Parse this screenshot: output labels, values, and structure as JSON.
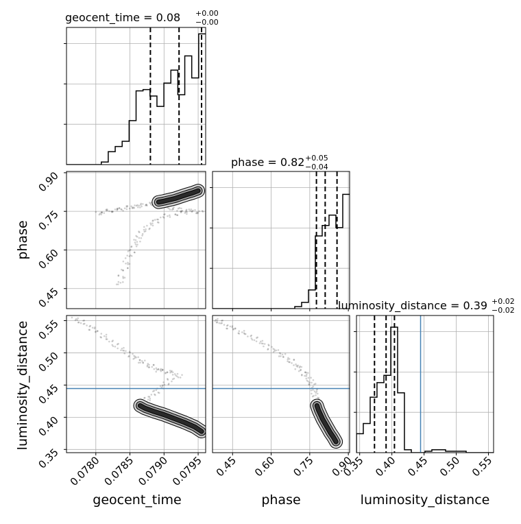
{
  "chart_data": {
    "type": "corner",
    "parameters": [
      "geocent_time",
      "phase",
      "luminosity_distance"
    ],
    "axis_labels": {
      "x": [
        "geocent_time",
        "phase",
        "luminosity_distance"
      ],
      "y": [
        "phase",
        "luminosity_distance"
      ]
    },
    "titles": [
      {
        "name": "geocent_time",
        "text": "geocent_time = 0.08",
        "sup": "+0.00",
        "sub": "−0.00"
      },
      {
        "name": "phase",
        "text": "phase = 0.82",
        "sup": "+0.05",
        "sub": "−0.04"
      },
      {
        "name": "luminosity_distance",
        "text": "luminosity_distance = 0.39",
        "sup": "+0.02",
        "sub": "−0.02"
      }
    ],
    "ranges": {
      "geocent_time": [
        0.07757,
        0.07961
      ],
      "phase": [
        0.372,
        0.905
      ],
      "luminosity_distance": [
        0.345,
        0.558
      ]
    },
    "ticks": {
      "geocent_time": [
        0.078,
        0.0785,
        0.079,
        0.0795
      ],
      "phase": [
        0.45,
        0.6,
        0.75,
        0.9
      ],
      "luminosity_distance": [
        0.35,
        0.4,
        0.45,
        0.5,
        0.55
      ]
    },
    "tick_labels": {
      "geocent_time": [
        "0.0780",
        "0.0785",
        "0.0790",
        "0.0795"
      ],
      "phase": [
        "0.45",
        "0.60",
        "0.75",
        "0.90"
      ],
      "luminosity_distance": [
        "0.35",
        "0.40",
        "0.45",
        "0.50",
        "0.55"
      ]
    },
    "histograms": {
      "geocent_time": {
        "edges": [
          0.07757,
          0.077672,
          0.077774,
          0.077876,
          0.077978,
          0.07808,
          0.078182,
          0.078284,
          0.078386,
          0.078488,
          0.07859,
          0.078692,
          0.078794,
          0.078896,
          0.078998,
          0.0791,
          0.079202,
          0.079304,
          0.079406,
          0.079508,
          0.07961
        ],
        "counts": [
          0,
          0,
          0,
          0,
          0,
          2,
          10,
          14,
          18,
          34,
          57,
          58,
          53,
          45,
          63,
          73,
          54,
          84,
          67,
          101
        ],
        "ymax": 106
      },
      "phase": {
        "edges": [
          0.372,
          0.3986,
          0.4253,
          0.4519,
          0.4786,
          0.5052,
          0.5319,
          0.5585,
          0.5852,
          0.6118,
          0.6385,
          0.6651,
          0.6918,
          0.7184,
          0.7451,
          0.7717,
          0.7984,
          0.825,
          0.8517,
          0.8783,
          0.905
        ],
        "counts": [
          0,
          0,
          0,
          0,
          0,
          0,
          0,
          0,
          0,
          0,
          0,
          0,
          1,
          3,
          9,
          35,
          40,
          45,
          39,
          55
        ],
        "ymax": 66
      },
      "luminosity_distance": {
        "edges": [
          0.345,
          0.3556,
          0.3663,
          0.3769,
          0.3876,
          0.3982,
          0.4089,
          0.4195,
          0.4302,
          0.4408,
          0.4515,
          0.4621,
          0.4728,
          0.4834,
          0.4941,
          0.5047,
          0.5154,
          0.526,
          0.5367,
          0.5473,
          0.558
        ],
        "counts": [
          13,
          20,
          38,
          48,
          53,
          86,
          41,
          2,
          0,
          0,
          1,
          2,
          2,
          1,
          1,
          1,
          0,
          0,
          0,
          0
        ],
        "ymax": 94
      }
    },
    "quantiles": {
      "geocent_time": [
        0.0788,
        0.07922,
        0.07955
      ],
      "phase": [
        0.776,
        0.81,
        0.856
      ],
      "luminosity_distance": [
        0.373,
        0.391,
        0.404
      ]
    },
    "truths": {
      "luminosity_distance": 0.4446
    },
    "scatter": {
      "geocent_time_vs_phase": {
        "x": [
          0.07805,
          0.07812,
          0.0782,
          0.07828,
          0.07835,
          0.07842,
          0.0785,
          0.07856,
          0.07862,
          0.0787,
          0.07878,
          0.07885,
          0.07892,
          0.079,
          0.07908,
          0.07916,
          0.07925,
          0.07933,
          0.07942,
          0.0795,
          0.0791,
          0.07918,
          0.07928,
          0.07937,
          0.07945,
          0.07952,
          0.0793,
          0.0792,
          0.07905,
          0.07895,
          0.07887,
          0.0788,
          0.07874,
          0.07868,
          0.07864,
          0.0786,
          0.07857,
          0.07852,
          0.07848,
          0.07845,
          0.07842,
          0.07838,
          0.07835
        ],
        "y": [
          0.743,
          0.748,
          0.752,
          0.755,
          0.758,
          0.762,
          0.765,
          0.769,
          0.771,
          0.774,
          0.778,
          0.782,
          0.786,
          0.79,
          0.795,
          0.8,
          0.808,
          0.815,
          0.822,
          0.83,
          0.762,
          0.758,
          0.756,
          0.752,
          0.75,
          0.748,
          0.745,
          0.74,
          0.733,
          0.724,
          0.712,
          0.698,
          0.684,
          0.668,
          0.652,
          0.634,
          0.616,
          0.596,
          0.574,
          0.55,
          0.524,
          0.496,
          0.472
        ],
        "contour_levels": 3
      },
      "geocent_time_vs_luminosity_distance": {
        "x": [
          0.0777,
          0.07778,
          0.07787,
          0.07795,
          0.07803,
          0.07812,
          0.0782,
          0.07828,
          0.07837,
          0.07845,
          0.07853,
          0.0786,
          0.07867,
          0.07874,
          0.0788,
          0.07887,
          0.07893,
          0.079,
          0.07907,
          0.07915,
          0.07922,
          0.0791,
          0.07902,
          0.07895,
          0.07888,
          0.07882,
          0.07876,
          0.0787,
          0.07865,
          0.07872,
          0.07885,
          0.079,
          0.07915,
          0.0793,
          0.07945,
          0.07955
        ],
        "y": [
          0.553,
          0.548,
          0.543,
          0.538,
          0.532,
          0.526,
          0.519,
          0.512,
          0.506,
          0.501,
          0.496,
          0.491,
          0.487,
          0.483,
          0.479,
          0.476,
          0.473,
          0.472,
          0.47,
          0.468,
          0.464,
          0.458,
          0.452,
          0.446,
          0.44,
          0.434,
          0.428,
          0.422,
          0.418,
          0.414,
          0.409,
          0.404,
          0.398,
          0.392,
          0.385,
          0.378
        ],
        "contour_levels": 3
      },
      "phase_vs_luminosity_distance": {
        "x": [
          0.382,
          0.398,
          0.418,
          0.44,
          0.462,
          0.486,
          0.51,
          0.534,
          0.556,
          0.578,
          0.6,
          0.622,
          0.642,
          0.66,
          0.676,
          0.692,
          0.706,
          0.72,
          0.732,
          0.742,
          0.752,
          0.76,
          0.766,
          0.77,
          0.772,
          0.774,
          0.778,
          0.784,
          0.792,
          0.8,
          0.81,
          0.82,
          0.83,
          0.842,
          0.852
        ],
        "y": [
          0.552,
          0.548,
          0.544,
          0.54,
          0.536,
          0.532,
          0.527,
          0.522,
          0.517,
          0.512,
          0.507,
          0.502,
          0.497,
          0.492,
          0.487,
          0.482,
          0.477,
          0.472,
          0.467,
          0.462,
          0.456,
          0.45,
          0.444,
          0.438,
          0.432,
          0.426,
          0.418,
          0.411,
          0.404,
          0.397,
          0.39,
          0.383,
          0.376,
          0.369,
          0.362
        ],
        "contour_levels": 3
      }
    },
    "grid": true,
    "legend": "none"
  }
}
